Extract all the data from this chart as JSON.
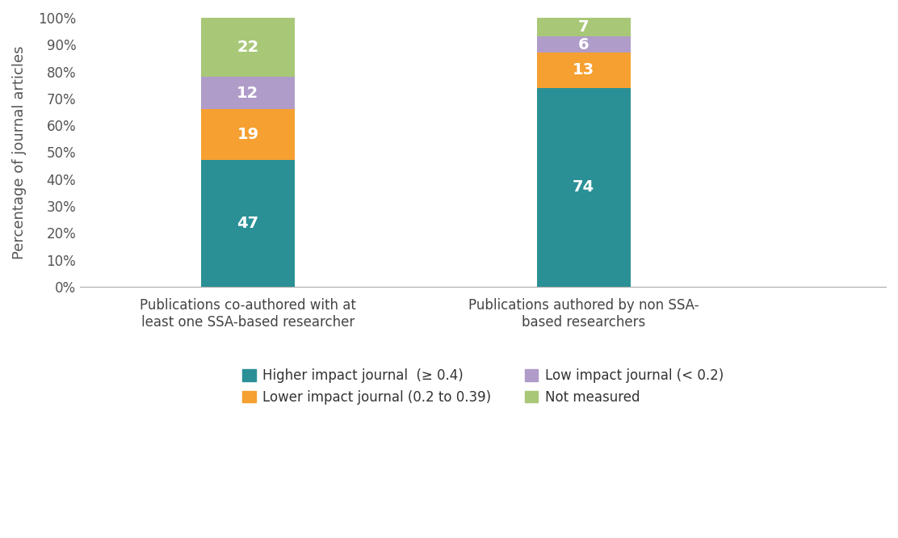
{
  "categories": [
    "Publications co-authored with at\nleast one SSA-based researcher",
    "Publications authored by non SSA-\nbased researchers"
  ],
  "series": [
    {
      "name": "Higher impact journal  (≥ 0.4)",
      "values": [
        47,
        74
      ],
      "color": "#2a9096"
    },
    {
      "name": "Lower impact journal (0.2 to 0.39)",
      "values": [
        19,
        13
      ],
      "color": "#f5a031"
    },
    {
      "name": "Low impact journal (< 0.2)",
      "values": [
        12,
        6
      ],
      "color": "#b09cc8"
    },
    {
      "name": "Not measured",
      "values": [
        22,
        7
      ],
      "color": "#a8c878"
    }
  ],
  "ylabel": "Percentage of journal articles",
  "ylim": [
    0,
    100
  ],
  "yticks": [
    0,
    10,
    20,
    30,
    40,
    50,
    60,
    70,
    80,
    90,
    100
  ],
  "ytick_labels": [
    "0%",
    "10%",
    "20%",
    "30%",
    "40%",
    "50%",
    "60%",
    "70%",
    "80%",
    "90%",
    "100%"
  ],
  "bar_positions": [
    1,
    2
  ],
  "bar_width": 0.28,
  "xlim": [
    0.5,
    2.9
  ],
  "label_fontsize": 14,
  "legend_fontsize": 12,
  "ylabel_fontsize": 13,
  "ytick_fontsize": 12,
  "xtick_fontsize": 12,
  "background_color": "#ffffff"
}
